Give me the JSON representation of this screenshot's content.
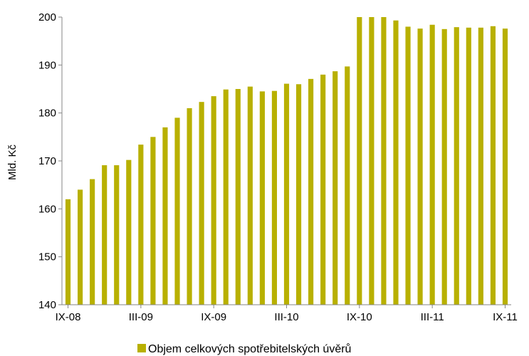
{
  "chart_data": {
    "type": "bar",
    "title": "",
    "xlabel": "",
    "ylabel": "Mld. Kč",
    "ylim": [
      140,
      200
    ],
    "yticks": [
      140,
      150,
      160,
      170,
      180,
      190,
      200
    ],
    "xtick_labels": [
      "IX-08",
      "III-09",
      "IX-09",
      "III-10",
      "IX-10",
      "III-11",
      "IX-11"
    ],
    "xtick_every": 6,
    "grid": false,
    "legend_position": "bottom",
    "series": [
      {
        "name": "Objem celkových spotřebitelských úvěrů",
        "color": "#b8b000",
        "values": [
          162.0,
          164.0,
          166.2,
          169.1,
          169.1,
          170.2,
          173.4,
          175.0,
          177.0,
          179.0,
          181.0,
          182.3,
          183.5,
          184.9,
          185.0,
          185.5,
          184.5,
          184.6,
          186.1,
          186.0,
          187.1,
          188.0,
          188.7,
          189.7,
          200.0,
          200.0,
          200.0,
          199.3,
          198.0,
          197.6,
          198.4,
          197.5,
          197.9,
          197.8,
          197.8,
          198.1,
          197.6
        ]
      }
    ]
  }
}
